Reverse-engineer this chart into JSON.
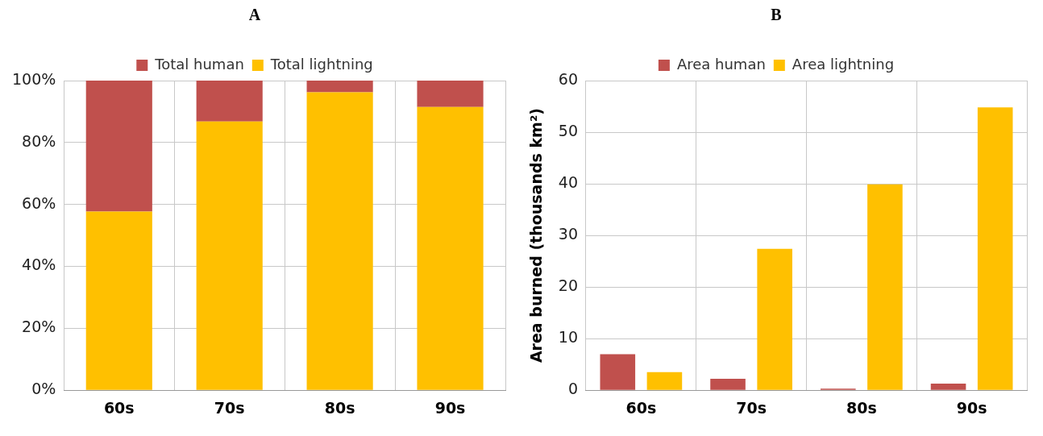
{
  "chart_data": [
    {
      "type": "bar",
      "title": "A",
      "stacked": true,
      "categories": [
        "60s",
        "70s",
        "80s",
        "90s"
      ],
      "series": [
        {
          "name": "Total lightning",
          "color": "#ffc000",
          "values": [
            57.7,
            86.8,
            96.2,
            91.5
          ]
        },
        {
          "name": "Total human",
          "color": "#c0504d",
          "values": [
            42.3,
            13.2,
            3.8,
            8.5
          ]
        }
      ],
      "ylim": [
        0,
        100
      ],
      "yticks": [
        {
          "value": 0,
          "label": "0%"
        },
        {
          "value": 20,
          "label": "20%"
        },
        {
          "value": 40,
          "label": "40%"
        },
        {
          "value": 60,
          "label": "60%"
        },
        {
          "value": 80,
          "label": "80%"
        },
        {
          "value": 100,
          "label": "100%"
        }
      ],
      "grid": true,
      "legend": "top"
    },
    {
      "type": "bar",
      "title": "B",
      "ylabel": "Area burned (thousands km²)",
      "categories": [
        "60s",
        "70s",
        "80s",
        "90s"
      ],
      "series": [
        {
          "name": "Area human",
          "color": "#c0504d",
          "values": [
            7.0,
            2.2,
            0.3,
            1.3
          ]
        },
        {
          "name": "Area lightning",
          "color": "#ffc000",
          "values": [
            3.5,
            27.4,
            39.9,
            54.8
          ]
        }
      ],
      "ylim": [
        0,
        60
      ],
      "yticks": [
        0,
        10,
        20,
        30,
        40,
        50,
        60
      ],
      "grid": true,
      "legend": "top"
    }
  ]
}
